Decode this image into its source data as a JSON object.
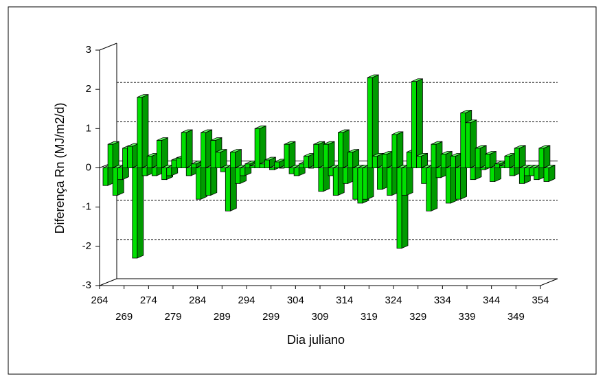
{
  "chart_data": {
    "type": "bar3d",
    "ylabel": "Diferença Rn (MJ/m2/d)",
    "xlabel": "Dia juliano",
    "x": [
      264,
      265,
      266,
      267,
      268,
      269,
      270,
      271,
      272,
      273,
      274,
      275,
      276,
      277,
      278,
      279,
      280,
      281,
      282,
      283,
      284,
      285,
      286,
      287,
      288,
      289,
      290,
      291,
      292,
      293,
      294,
      295,
      296,
      297,
      298,
      299,
      300,
      301,
      302,
      303,
      304,
      305,
      306,
      307,
      308,
      309,
      310,
      311,
      312,
      313,
      314,
      315,
      316,
      317,
      318,
      319,
      320,
      321,
      322,
      323,
      324,
      325,
      326,
      327,
      328,
      329,
      330,
      331,
      332,
      333,
      334,
      335,
      336,
      337,
      338,
      339,
      340,
      341,
      342,
      343,
      344,
      345,
      346,
      347,
      348,
      349,
      350,
      351,
      352,
      353,
      354
    ],
    "values": [
      -0.45,
      0.6,
      -0.7,
      -0.3,
      0.5,
      0.55,
      -2.3,
      1.8,
      -0.2,
      0.3,
      -0.2,
      0.7,
      -0.3,
      -0.2,
      0.2,
      0.25,
      0.9,
      -0.2,
      0.1,
      -0.8,
      0.9,
      -0.7,
      0.7,
      0.4,
      -0.1,
      -1.1,
      0.4,
      -0.4,
      -0.2,
      0.1,
      0.05,
      1.0,
      0.1,
      0.2,
      -0.05,
      0.15,
      0,
      0.6,
      -0.15,
      -0.2,
      0.1,
      0.3,
      0,
      0.6,
      -0.6,
      0.6,
      -0.2,
      -0.7,
      0.9,
      -0.4,
      0.4,
      -0.8,
      -0.9,
      -0.8,
      2.3,
      0.3,
      -0.55,
      0.35,
      -0.7,
      0.85,
      -2.05,
      -0.7,
      0.4,
      2.2,
      0.3,
      -0.4,
      -1.1,
      0.6,
      -0.25,
      0.35,
      -0.9,
      0.3,
      -0.8,
      1.4,
      1.15,
      -0.3,
      0.5,
      -0.05,
      0.35,
      -0.35,
      0.1,
      0.05,
      0.3,
      -0.2,
      0.5,
      -0.4,
      -0.2,
      -0.2,
      -0.3,
      0.5,
      -0.35
    ],
    "color": "#00e000",
    "xlim": [
      264,
      354
    ],
    "xticks": [
      264,
      269,
      274,
      279,
      284,
      289,
      294,
      299,
      304,
      309,
      314,
      319,
      324,
      329,
      334,
      339,
      344,
      349,
      354
    ],
    "ylim": [
      -3,
      3
    ],
    "yticks": [
      -3,
      -2,
      -1,
      0,
      1,
      2,
      3
    ],
    "grid": true
  }
}
